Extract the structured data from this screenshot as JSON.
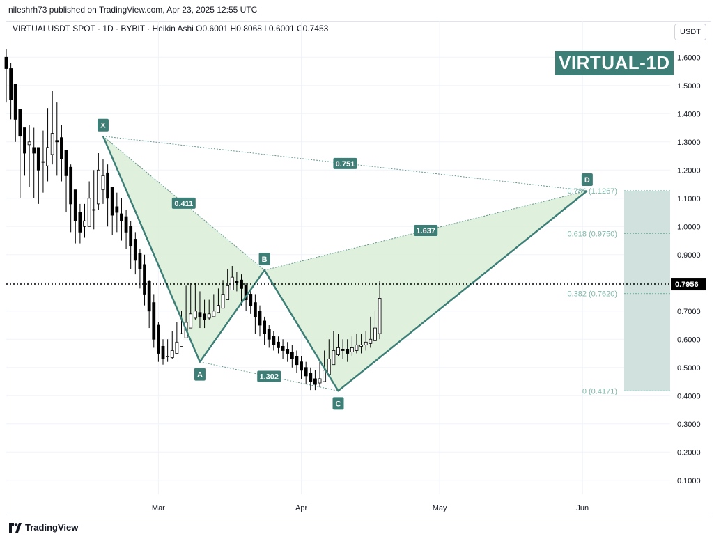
{
  "header": {
    "publisher": "nileshrh73 published on TradingView.com, Apr 23, 2025 12:55 UTC",
    "legend": "VIRTUALUSDT SPOT · 1D · BYBIT · Heikin Ashi  O0.6001  H0.8068  L0.6001  C0.7453",
    "currency": "USDT",
    "badge": "VIRTUAL-1D"
  },
  "footer": {
    "brand": "TradingView",
    "logo_icon": "tradingview-logo-icon"
  },
  "colors": {
    "pattern_line": "#3d7f77",
    "pattern_fill": "#dcefd9",
    "fib_zone": "#c9ddd8",
    "bull_candle": "#ffffff",
    "bear_candle": "#000000"
  },
  "chart_data": {
    "type": "candlestick",
    "symbol": "VIRTUALUSDT",
    "timeframe": "1D",
    "y_axis": {
      "ylim": [
        0.05,
        1.66
      ],
      "ticks": [
        0.1,
        0.2,
        0.3,
        0.4,
        0.5,
        0.6,
        0.7,
        0.8,
        0.9,
        1.0,
        1.1,
        1.2,
        1.3,
        1.4,
        1.5,
        1.6
      ],
      "tick_labels": [
        "0.1000",
        "0.2000",
        "0.3000",
        "0.4000",
        "0.5000",
        "0.6000",
        "0.7000",
        "0.8000",
        "0.9000",
        "1.0000",
        "1.1000",
        "1.2000",
        "1.3000",
        "1.4000",
        "1.5000",
        "1.6000"
      ]
    },
    "x_axis": {
      "start": "2025-01-27",
      "end": "2025-06-20",
      "ticks": [
        {
          "label": "Mar",
          "date": "2025-03-01"
        },
        {
          "label": "Apr",
          "date": "2025-04-01"
        },
        {
          "label": "May",
          "date": "2025-05-01"
        },
        {
          "label": "Jun",
          "date": "2025-06-01"
        }
      ]
    },
    "grid": true,
    "current_price": {
      "value": 0.7956,
      "label": "0.7956"
    },
    "candles": {
      "start_date": "2025-01-27",
      "close": [
        1.56,
        1.45,
        1.38,
        1.32,
        1.26,
        1.3,
        1.26,
        1.2,
        1.23,
        1.28,
        1.33,
        1.3,
        1.24,
        1.18,
        1.08,
        1.02,
        0.98,
        1.02,
        1.1,
        1.06,
        1.2,
        1.18,
        1.1,
        1.04,
        1.05,
        1.02,
        0.98,
        0.93,
        0.88,
        0.85,
        0.76,
        0.7,
        0.6,
        0.55,
        0.53,
        0.54,
        0.56,
        0.59,
        0.62,
        0.66,
        0.69,
        0.7,
        0.68,
        0.67,
        0.69,
        0.7,
        0.72,
        0.76,
        0.79,
        0.82,
        0.8,
        0.78,
        0.74,
        0.72,
        0.68,
        0.65,
        0.62,
        0.6,
        0.58,
        0.57,
        0.56,
        0.55,
        0.53,
        0.51,
        0.49,
        0.47,
        0.45,
        0.44,
        0.46,
        0.49,
        0.53,
        0.56,
        0.57,
        0.56,
        0.55,
        0.57,
        0.58,
        0.58,
        0.59,
        0.6,
        0.64,
        0.7453
      ],
      "high": [
        1.63,
        1.58,
        1.47,
        1.4,
        1.34,
        1.36,
        1.35,
        1.28,
        1.34,
        1.42,
        1.48,
        1.44,
        1.36,
        1.27,
        1.22,
        1.12,
        1.08,
        1.08,
        1.16,
        1.2,
        1.26,
        1.24,
        1.22,
        1.12,
        1.12,
        1.1,
        1.06,
        1.02,
        0.98,
        0.92,
        0.9,
        0.81,
        0.76,
        0.66,
        0.6,
        0.6,
        0.63,
        0.66,
        0.7,
        0.79,
        0.8,
        0.8,
        0.77,
        0.74,
        0.74,
        0.76,
        0.78,
        0.81,
        0.85,
        0.86,
        0.84,
        0.83,
        0.8,
        0.77,
        0.76,
        0.72,
        0.68,
        0.65,
        0.63,
        0.61,
        0.6,
        0.59,
        0.58,
        0.56,
        0.54,
        0.52,
        0.5,
        0.49,
        0.52,
        0.56,
        0.6,
        0.63,
        0.62,
        0.6,
        0.6,
        0.61,
        0.62,
        0.62,
        0.63,
        0.68,
        0.7,
        0.8068
      ],
      "low": [
        1.44,
        1.38,
        1.3,
        1.1,
        1.18,
        1.14,
        1.1,
        1.08,
        1.12,
        1.16,
        1.22,
        1.18,
        1.16,
        1.05,
        0.98,
        0.94,
        0.94,
        0.96,
        1.0,
        0.99,
        1.06,
        1.08,
        1.0,
        0.97,
        0.98,
        0.95,
        0.92,
        0.85,
        0.83,
        0.78,
        0.72,
        0.64,
        0.57,
        0.52,
        0.51,
        0.52,
        0.53,
        0.56,
        0.59,
        0.64,
        0.67,
        0.67,
        0.64,
        0.64,
        0.67,
        0.68,
        0.7,
        0.73,
        0.76,
        0.78,
        0.77,
        0.72,
        0.7,
        0.69,
        0.62,
        0.61,
        0.58,
        0.57,
        0.56,
        0.55,
        0.53,
        0.52,
        0.5,
        0.48,
        0.46,
        0.44,
        0.42,
        0.42,
        0.43,
        0.46,
        0.5,
        0.53,
        0.54,
        0.53,
        0.52,
        0.54,
        0.55,
        0.55,
        0.56,
        0.57,
        0.6,
        0.6001
      ]
    },
    "harmonic_pattern": {
      "points": [
        {
          "label": "X",
          "date": "2025-02-17",
          "price": 1.32
        },
        {
          "label": "A",
          "date": "2025-03-10",
          "price": 0.52
        },
        {
          "label": "B",
          "date": "2025-03-24",
          "price": 0.845
        },
        {
          "label": "C",
          "date": "2025-04-09",
          "price": 0.4171
        },
        {
          "label": "D",
          "date": "2025-06-02",
          "price": 1.1267
        }
      ],
      "ratios": [
        {
          "from": "X",
          "to": "B",
          "value": "0.411"
        },
        {
          "from": "A",
          "to": "C",
          "value": "1.302"
        },
        {
          "from": "B",
          "to": "D",
          "value": "1.637"
        },
        {
          "from": "X",
          "to": "D",
          "value": "0.751"
        }
      ]
    },
    "fib_levels": [
      {
        "ratio": "0.786",
        "price": 1.1267,
        "label": "0.786 (1.1267)"
      },
      {
        "ratio": "0.618",
        "price": 0.975,
        "label": "0.618 (0.9750)"
      },
      {
        "ratio": "0.382",
        "price": 0.762,
        "label": "0.382 (0.7620)"
      },
      {
        "ratio": "0",
        "price": 0.4171,
        "label": "0 (0.4171)"
      }
    ]
  }
}
